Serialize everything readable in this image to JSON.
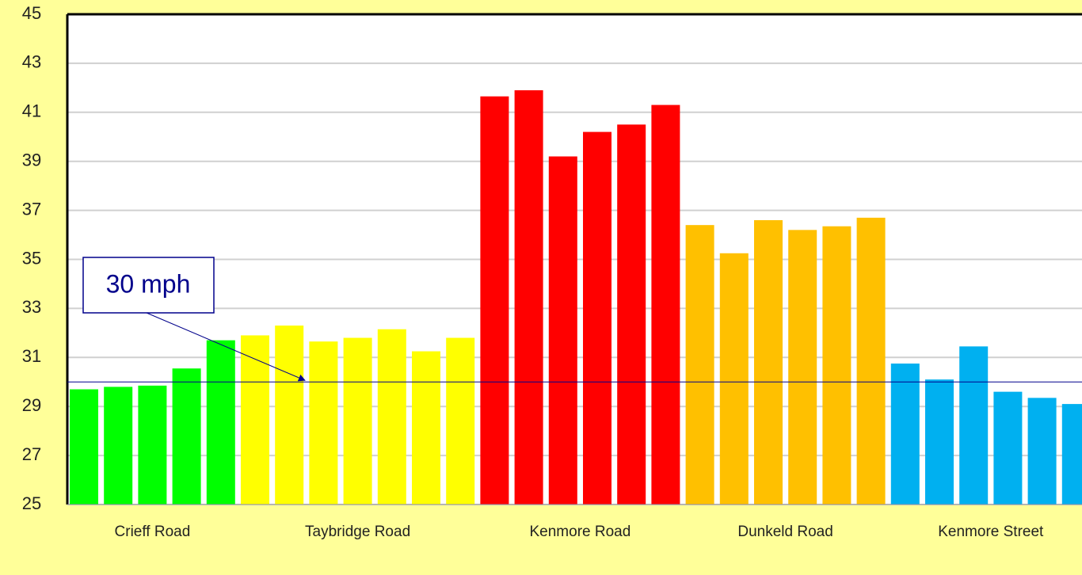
{
  "chart_data": {
    "type": "grouped-bar",
    "groups": [
      {
        "name": "Crieff Road",
        "color": "#00ff00",
        "values": [
          29.7,
          29.8,
          29.85,
          30.55,
          31.7
        ]
      },
      {
        "name": "Taybridge Road",
        "color": "#ffff00",
        "values": [
          31.9,
          32.3,
          31.65,
          31.8,
          32.15,
          31.25,
          31.8
        ]
      },
      {
        "name": "Kenmore Road",
        "color": "#ff0000",
        "values": [
          41.65,
          41.9,
          39.2,
          40.2,
          40.5,
          41.3
        ]
      },
      {
        "name": "Dunkeld Road",
        "color": "#ffc000",
        "values": [
          36.4,
          35.25,
          36.6,
          36.2,
          36.35,
          36.7
        ]
      },
      {
        "name": "Kenmore Street",
        "color": "#00b0f0",
        "values": [
          30.75,
          30.1,
          31.45,
          29.6,
          29.35,
          29.1
        ]
      }
    ],
    "ylim": [
      25,
      45
    ],
    "yticks": [
      25,
      27,
      29,
      31,
      33,
      35,
      37,
      39,
      41,
      43,
      45
    ],
    "grid": true,
    "reference_line": {
      "value": 30,
      "label": "30 mph",
      "color": "#00008b"
    }
  }
}
